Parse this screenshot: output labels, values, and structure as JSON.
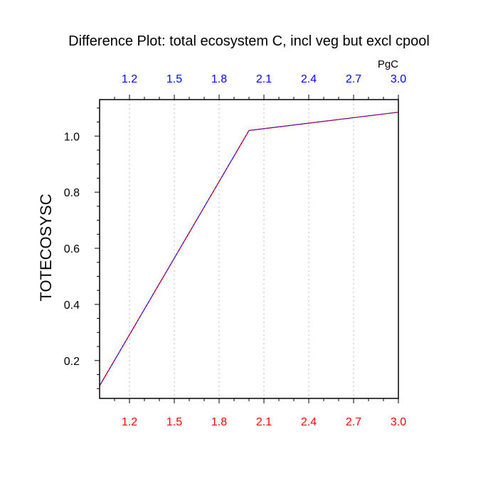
{
  "chart_data": {
    "type": "line",
    "title": "Difference Plot: total ecosystem C, incl veg but excl cpool",
    "ylabel": "TOTECOSYSC",
    "top_axis_unit": "PgC",
    "xlim": [
      1.0,
      3.0
    ],
    "ylim": [
      0.065,
      1.13
    ],
    "x_ticks": [
      "1.2",
      "1.5",
      "1.8",
      "2.1",
      "2.4",
      "2.7",
      "3.0"
    ],
    "y_ticks": [
      "0.2",
      "0.4",
      "0.6",
      "0.8",
      "1.0"
    ],
    "grid": "vertical dotted",
    "series": [
      {
        "x": [
          1.0,
          2.0,
          3.0
        ],
        "y": [
          0.11,
          1.02,
          1.085
        ],
        "colors": [
          "#0000ff",
          "#ff0000"
        ],
        "style": "dashed-overlay"
      }
    ],
    "colors": {
      "bottom_ticks": "#ff0000",
      "top_ticks": "#0000ff",
      "axis": "#000000",
      "grid": "#bbbbbb"
    }
  }
}
